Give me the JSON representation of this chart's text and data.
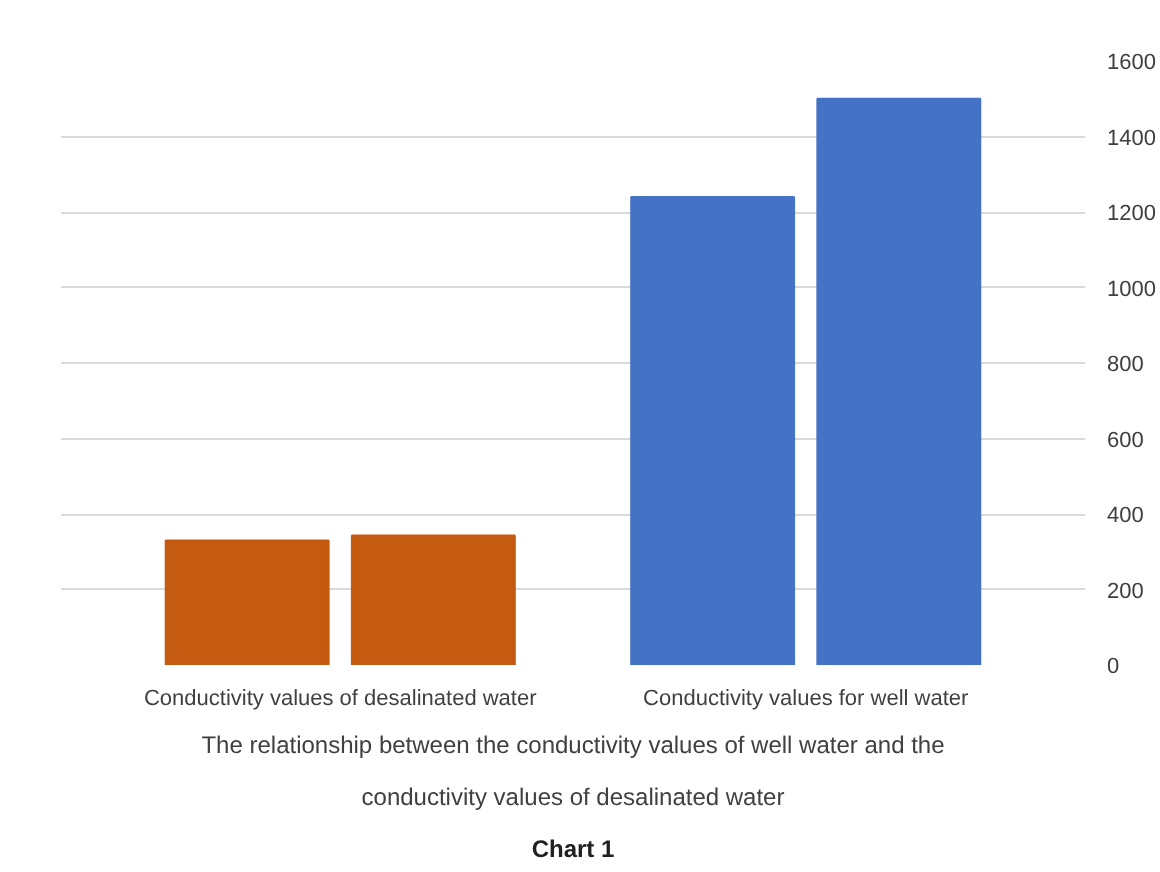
{
  "chart_data": {
    "type": "bar",
    "categories": [
      "Conductivity values of desalinated water",
      "Conductivity values for well water"
    ],
    "series": [
      {
        "colors": [
          "#c55a11",
          "#4472c4"
        ],
        "values": [
          330,
          1240
        ]
      },
      {
        "colors": [
          "#c55a11",
          "#4472c4"
        ],
        "values": [
          343,
          1500
        ]
      }
    ],
    "ylim": [
      0,
      1600
    ],
    "yticks": [
      0,
      200,
      400,
      600,
      800,
      1000,
      1200,
      1400,
      1600
    ],
    "grid": "y",
    "annotations": [
      "The relationship between the conductivity values of well water and the conductivity values of desalinated water",
      "Chart 1"
    ]
  }
}
